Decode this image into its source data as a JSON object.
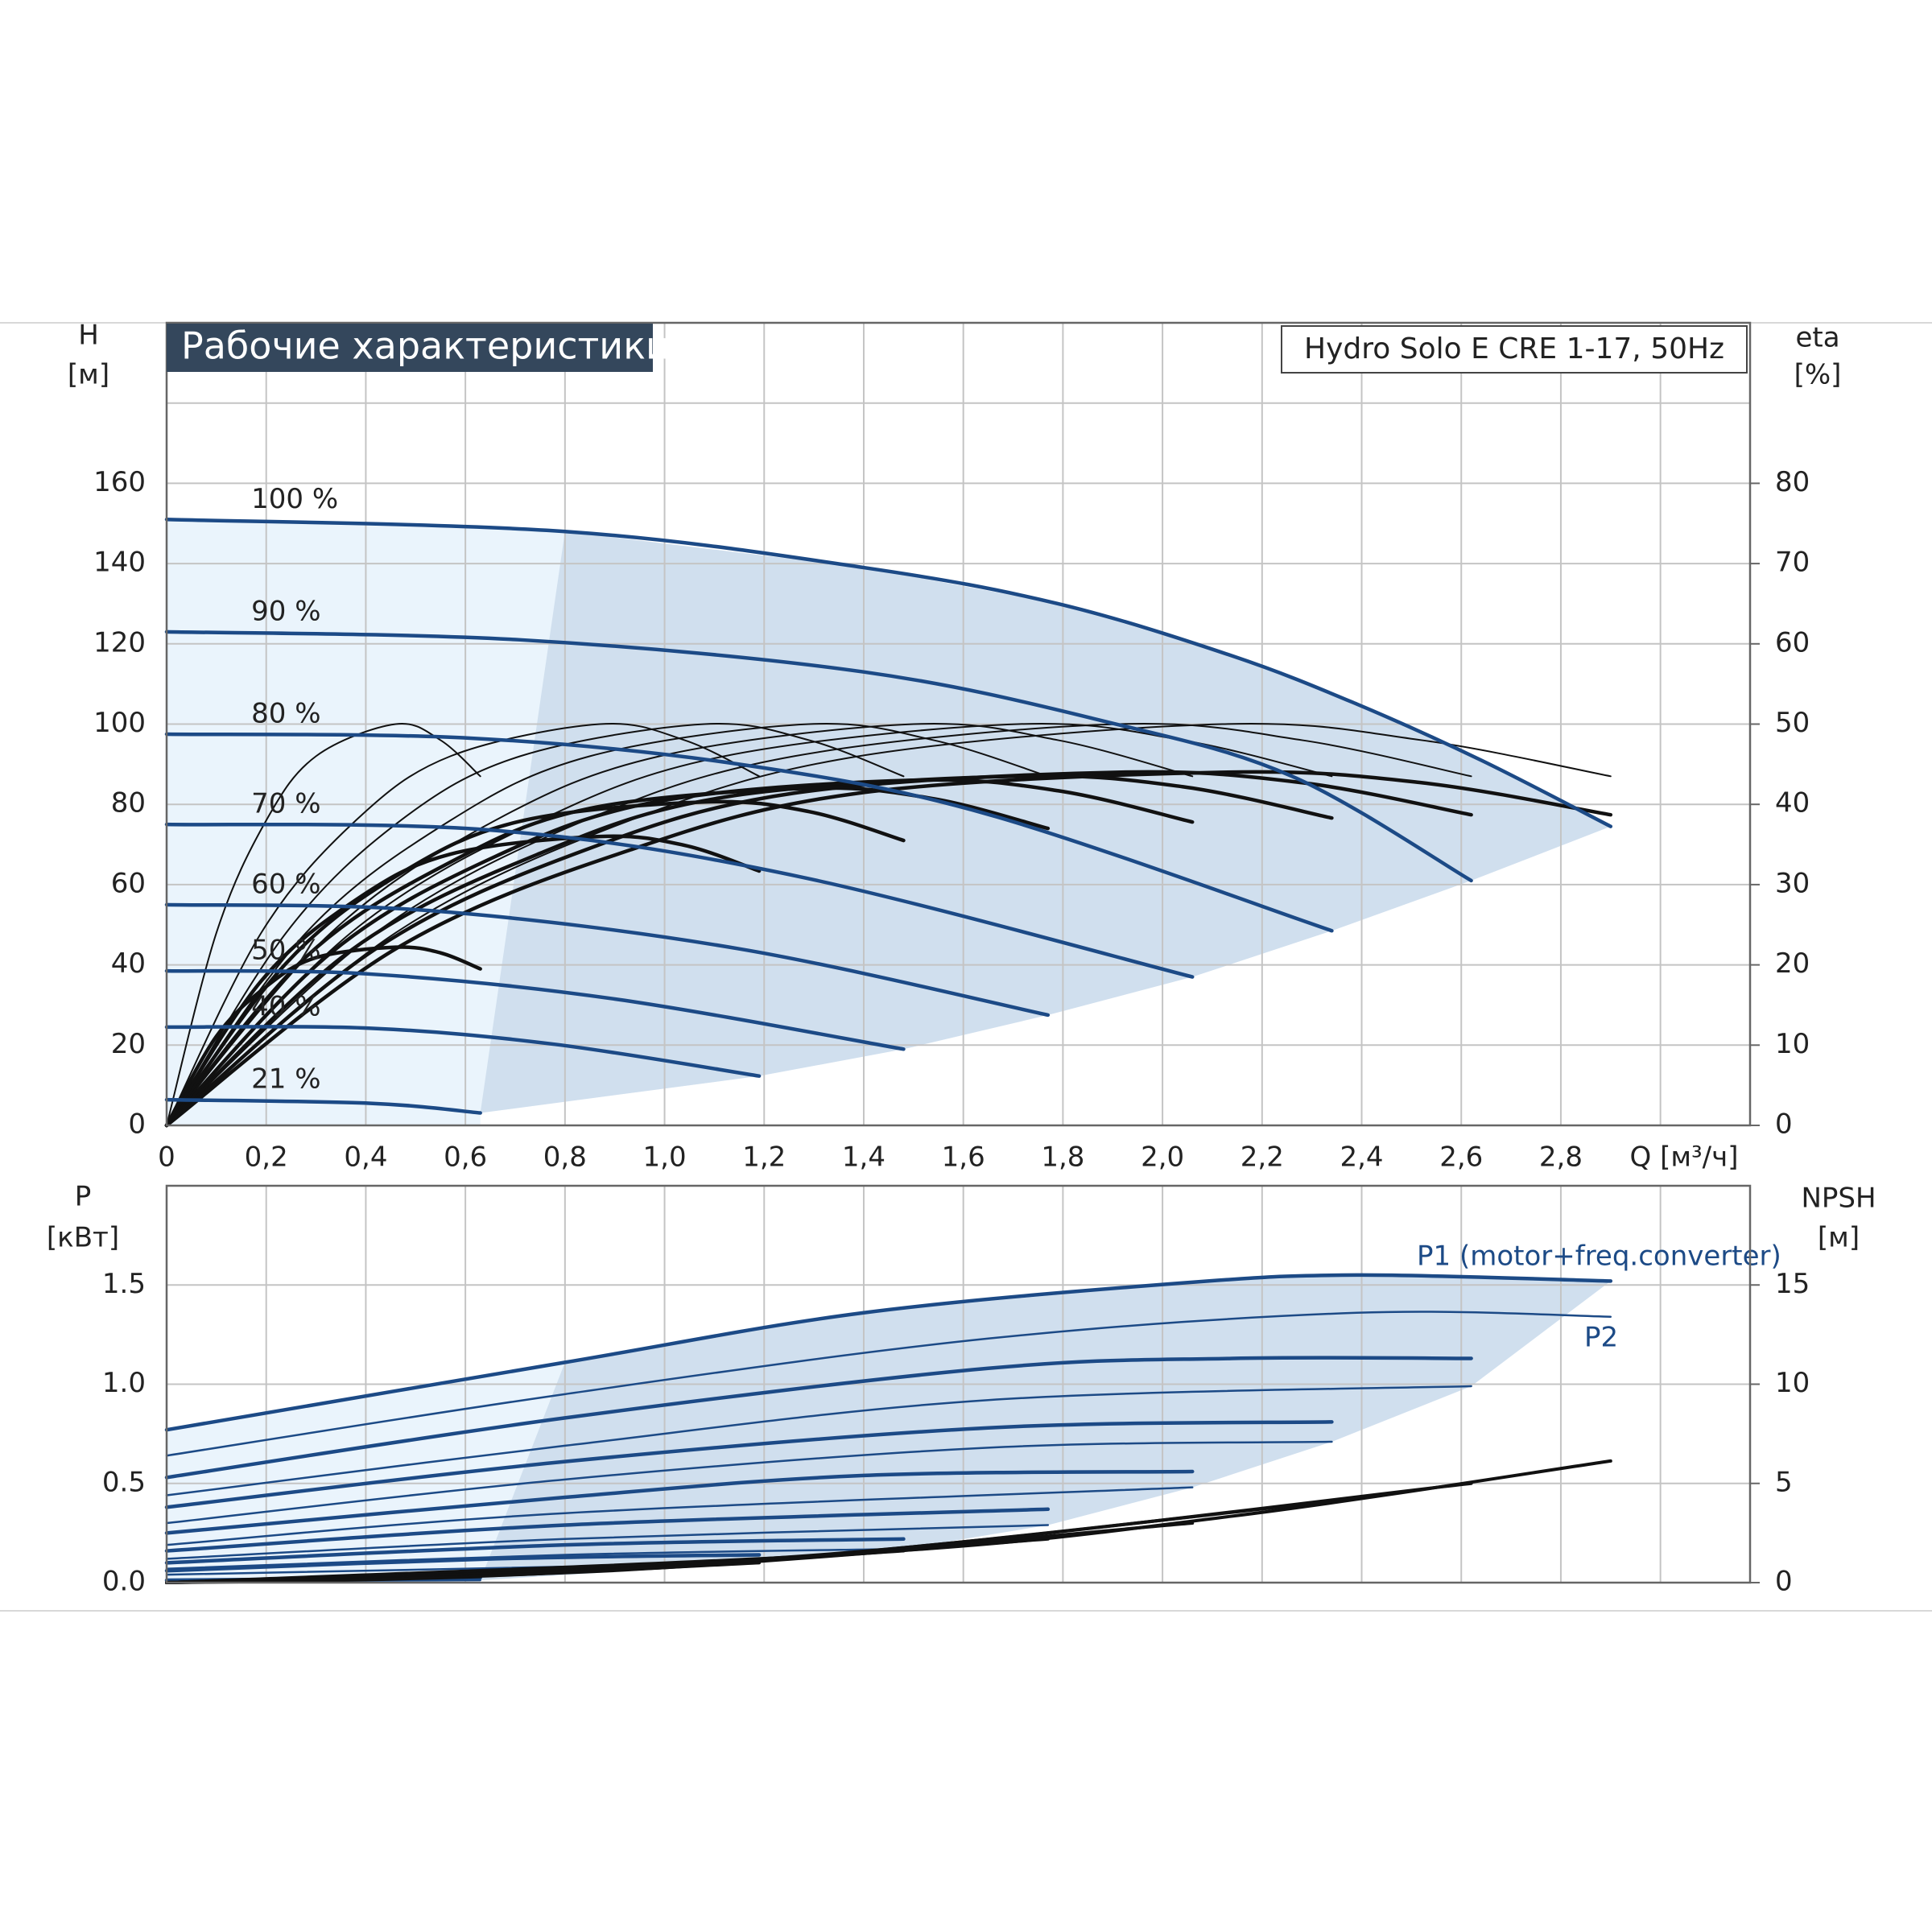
{
  "chart_data": [
    {
      "type": "line",
      "title": "Рабочие характеристики",
      "subtitle": "Hydro Solo E CRE 1-17, 50Hz",
      "ylabel": "H",
      "yunit": "[м]",
      "y2label": "eta",
      "y2unit": "[%]",
      "xlabel": "Q [м³/ч]",
      "xlim": [
        0,
        3.18
      ],
      "ylim": [
        0,
        200
      ],
      "y2lim": [
        0,
        100
      ],
      "xticks": [
        0,
        {
          "value": 0.2,
          "label": "0,2"
        },
        {
          "value": 0.4,
          "label": "0,4"
        },
        {
          "value": 0.6,
          "label": "0,6"
        },
        {
          "value": 0.8,
          "label": "0,8"
        },
        {
          "value": 1,
          "label": "1,0"
        },
        {
          "value": 1.2,
          "label": "1,2"
        },
        {
          "value": 1.4,
          "label": "1,4"
        },
        {
          "value": 1.6,
          "label": "1,6"
        },
        {
          "value": 1.8,
          "label": "1,8"
        },
        {
          "value": 2,
          "label": "2,0"
        },
        {
          "value": 2.2,
          "label": "2,2"
        },
        {
          "value": 2.4,
          "label": "2,4"
        },
        {
          "value": 2.6,
          "label": "2,6"
        },
        {
          "value": 2.8,
          "label": "2,8"
        },
        {
          "value": 3,
          "label": null
        }
      ],
      "yticks": [
        0,
        20,
        40,
        60,
        80,
        100,
        120,
        140,
        160,
        {
          "value": 180,
          "label": null
        }
      ],
      "y2ticks": [
        0,
        10,
        20,
        30,
        40,
        50,
        60,
        70,
        80
      ],
      "grid": true,
      "series": [
        {
          "name": "100 %",
          "color": "#1c4a86",
          "x": [
            0,
            0.8,
            1.4,
            1.79,
            2.14,
            2.39,
            2.64,
            2.9
          ],
          "values": [
            151,
            148,
            139,
            130,
            117,
            105,
            91,
            74.5
          ]
        },
        {
          "name": "90 %",
          "color": "#1c4a86",
          "x": [
            0,
            0.71,
            1.4,
            1.89,
            2.26,
            2.62
          ],
          "values": [
            123,
            121,
            113,
            100.5,
            87,
            61
          ]
        },
        {
          "name": "80 %",
          "color": "#1c4a86",
          "x": [
            0,
            0.61,
            1.15,
            1.65,
            2.34
          ],
          "values": [
            97.5,
            96.5,
            90,
            77.5,
            48.5
          ]
        },
        {
          "name": "70 %",
          "color": "#1c4a86",
          "x": [
            0,
            0.66,
            1.27,
            2.06
          ],
          "values": [
            75,
            73.5,
            62,
            37
          ]
        },
        {
          "name": "60 %",
          "color": "#1c4a86",
          "x": [
            0,
            0.53,
            1.15,
            1.77
          ],
          "values": [
            55,
            53.5,
            44,
            27.5
          ]
        },
        {
          "name": "50 %",
          "color": "#1c4a86",
          "x": [
            0,
            0.41,
            0.9,
            1.48
          ],
          "values": [
            38.5,
            37.7,
            31.5,
            19
          ]
        },
        {
          "name": "40 %",
          "color": "#1c4a86",
          "x": [
            0,
            0.41,
            0.78,
            1.19
          ],
          "values": [
            24.5,
            24.2,
            20.2,
            12.3
          ]
        },
        {
          "name": "21 %",
          "color": "#1c4a86",
          "x": [
            0,
            0.41,
            0.63
          ],
          "values": [
            6.4,
            5.5,
            3.1
          ]
        }
      ],
      "eta_series": [
        {
          "axis": "y2",
          "color": "#111111",
          "x": [
            0,
            0.46,
            0.93,
            1.39,
            2.12,
            2.52,
            2.9
          ],
          "values": [
            0,
            24,
            38,
            46,
            50,
            48,
            43.5
          ]
        },
        {
          "axis": "y2",
          "color": "#111111",
          "x": [
            0,
            0.42,
            0.84,
            1.26,
            1.91,
            2.28,
            2.62
          ],
          "values": [
            0,
            24,
            38,
            46,
            50,
            48,
            43.5
          ]
        },
        {
          "axis": "y2",
          "color": "#111111",
          "x": [
            0,
            0.37,
            0.75,
            1.12,
            1.71,
            2.04,
            2.34
          ],
          "values": [
            0,
            24,
            38,
            46,
            50,
            48,
            43.5
          ]
        },
        {
          "axis": "y2",
          "color": "#111111",
          "x": [
            0,
            0.33,
            0.66,
            0.99,
            1.5,
            1.79,
            2.06
          ],
          "values": [
            0,
            24,
            38,
            46,
            50,
            48,
            43.5
          ]
        },
        {
          "axis": "y2",
          "color": "#111111",
          "x": [
            0,
            0.28,
            0.57,
            0.85,
            1.29,
            1.54,
            1.77
          ],
          "values": [
            0,
            24,
            38,
            46,
            50,
            48,
            43.5
          ]
        },
        {
          "axis": "y2",
          "color": "#111111",
          "x": [
            0,
            0.24,
            0.47,
            0.71,
            1.08,
            1.29,
            1.48
          ],
          "values": [
            0,
            24,
            38,
            46,
            50,
            48,
            43.5
          ]
        },
        {
          "axis": "y2",
          "color": "#111111",
          "x": [
            0,
            0.19,
            0.38,
            0.57,
            0.87,
            1.04,
            1.19
          ],
          "values": [
            0,
            24,
            38,
            46,
            50,
            48,
            43.5
          ]
        },
        {
          "axis": "y2",
          "color": "#111111",
          "x": [
            0,
            0.1,
            0.2,
            0.3,
            0.46,
            0.55,
            0.63
          ],
          "values": [
            0,
            24,
            38,
            46,
            50,
            48,
            43.5
          ]
        }
      ],
      "eta_total_series": [
        {
          "axis": "y2",
          "color": "#111111",
          "x": [
            0,
            0.46,
            0.93,
            1.39,
            2.12,
            2.52,
            2.9
          ],
          "values": [
            0,
            22,
            34.3,
            41.4,
            44,
            42.7,
            38.7
          ]
        },
        {
          "axis": "y2",
          "color": "#111111",
          "x": [
            0,
            0.42,
            0.84,
            1.26,
            1.91,
            2.28,
            2.62
          ],
          "values": [
            0,
            22,
            34.3,
            41.4,
            44,
            42.7,
            38.7
          ]
        },
        {
          "axis": "y2",
          "color": "#111111",
          "x": [
            0,
            0.37,
            0.75,
            1.12,
            1.71,
            2.04,
            2.34
          ],
          "values": [
            0,
            21.8,
            33.9,
            40.9,
            43.5,
            42.2,
            38.3
          ]
        },
        {
          "axis": "y2",
          "color": "#111111",
          "x": [
            0,
            0.33,
            0.66,
            0.99,
            1.5,
            1.79,
            2.06
          ],
          "values": [
            0,
            21.5,
            33.5,
            40.4,
            43,
            41.7,
            37.8
          ]
        },
        {
          "axis": "y2",
          "color": "#111111",
          "x": [
            0,
            0.28,
            0.57,
            0.85,
            1.29,
            1.54,
            1.77
          ],
          "values": [
            0,
            21,
            32.8,
            39.5,
            42,
            40.7,
            37
          ]
        },
        {
          "axis": "y2",
          "color": "#111111",
          "x": [
            0,
            0.24,
            0.47,
            0.71,
            1.08,
            1.29,
            1.48
          ],
          "values": [
            0,
            20.2,
            31.4,
            37.9,
            40.3,
            39.1,
            35.5
          ]
        },
        {
          "axis": "y2",
          "color": "#111111",
          "x": [
            0,
            0.19,
            0.38,
            0.57,
            0.87,
            1.04,
            1.19
          ],
          "values": [
            0,
            18,
            28.1,
            33.8,
            36,
            34.9,
            31.7
          ]
        },
        {
          "axis": "y2",
          "color": "#111111",
          "x": [
            0,
            0.1,
            0.2,
            0.3,
            0.46,
            0.55,
            0.63
          ],
          "values": [
            0,
            11.1,
            17.3,
            20.9,
            22.2,
            21.5,
            19.5
          ]
        }
      ],
      "region_colors": [
        "#eaf4fc",
        "#d0dfee"
      ]
    },
    {
      "type": "line",
      "ylabel": "P",
      "yunit": "[кВт]",
      "y2label": "NPSH",
      "y2unit": "[м]",
      "annotations": [
        "P1 (motor+freq.converter)",
        "P2"
      ],
      "annotation_color": "#1c4a86",
      "xlim": [
        0,
        3.18
      ],
      "ylim": [
        0,
        2
      ],
      "y2lim": [
        0,
        20
      ],
      "xticks": [
        0.2,
        0.4,
        0.6,
        0.8,
        1,
        1.2,
        1.4,
        1.6,
        1.8,
        2,
        2.2,
        2.4,
        2.6,
        2.8,
        3
      ],
      "xtick_labels": false,
      "yticks": [
        {
          "value": 0,
          "label": "0.0"
        },
        0.5,
        {
          "value": 1,
          "label": "1.0"
        },
        1.5
      ],
      "y2ticks": [
        0,
        5,
        10,
        15
      ],
      "grid": true,
      "p1_series": [
        {
          "color": "#1c4a86",
          "x": [
            0,
            0.8,
            1.4,
            2.04,
            2.39,
            2.9
          ],
          "values": [
            0.77,
            1.11,
            1.36,
            1.51,
            1.55,
            1.52
          ]
        },
        {
          "color": "#1c4a86",
          "x": [
            0,
            0.8,
            1.65,
            2.14,
            2.62
          ],
          "values": [
            0.53,
            0.83,
            1.08,
            1.13,
            1.13
          ]
        },
        {
          "color": "#1c4a86",
          "x": [
            0,
            0.8,
            1.65,
            2.34
          ],
          "values": [
            0.38,
            0.61,
            0.78,
            0.81
          ]
        },
        {
          "color": "#1c4a86",
          "x": [
            0,
            0.8,
            1.4,
            2.06
          ],
          "values": [
            0.25,
            0.43,
            0.54,
            0.56
          ]
        },
        {
          "color": "#1c4a86",
          "x": [
            0,
            0.8,
            1.77
          ],
          "values": [
            0.16,
            0.29,
            0.37
          ]
        },
        {
          "color": "#1c4a86",
          "x": [
            0,
            0.8,
            1.48
          ],
          "values": [
            0.1,
            0.19,
            0.22
          ]
        },
        {
          "color": "#1c4a86",
          "x": [
            0,
            0.66,
            1.19
          ],
          "values": [
            0.06,
            0.12,
            0.14
          ]
        },
        {
          "color": "#1c4a86",
          "x": [
            0,
            0.63
          ],
          "values": [
            0.012,
            0.025
          ]
        }
      ],
      "p2_series": [
        {
          "color": "#1c4a86",
          "x": [
            0,
            0.8,
            1.65,
            2.39,
            2.9
          ],
          "values": [
            0.64,
            0.95,
            1.23,
            1.36,
            1.34
          ]
        },
        {
          "color": "#1c4a86",
          "x": [
            0,
            0.8,
            1.65,
            2.62
          ],
          "values": [
            0.44,
            0.69,
            0.92,
            0.99
          ]
        },
        {
          "color": "#1c4a86",
          "x": [
            0,
            0.8,
            1.65,
            2.34
          ],
          "values": [
            0.3,
            0.52,
            0.68,
            0.71
          ]
        },
        {
          "color": "#1c4a86",
          "x": [
            0,
            0.8,
            2.06
          ],
          "values": [
            0.19,
            0.35,
            0.48
          ]
        },
        {
          "color": "#1c4a86",
          "x": [
            0,
            0.8,
            1.77
          ],
          "values": [
            0.12,
            0.22,
            0.29
          ]
        },
        {
          "color": "#1c4a86",
          "x": [
            0,
            0.8,
            1.48
          ],
          "values": [
            0.07,
            0.14,
            0.17
          ]
        },
        {
          "color": "#1c4a86",
          "x": [
            0,
            1.19
          ],
          "values": [
            0.04,
            0.1
          ]
        },
        {
          "color": "#1c4a86",
          "x": [
            0,
            0.63
          ],
          "values": [
            0.006,
            0.012
          ]
        }
      ],
      "npsh_series": [
        {
          "axis": "y2",
          "color": "#111111",
          "x": [
            0,
            1.4,
            2.14,
            2.9
          ],
          "values": [
            0,
            1.49,
            3.35,
            6.13
          ]
        },
        {
          "axis": "y2",
          "color": "#111111",
          "x": [
            0,
            1.31,
            2.62
          ],
          "values": [
            0,
            1.4,
            5
          ]
        },
        {
          "axis": "y2",
          "color": "#111111",
          "x": [
            0,
            1.17,
            2.34
          ],
          "values": [
            0,
            1.1,
            4.1
          ]
        },
        {
          "axis": "y2",
          "color": "#111111",
          "x": [
            0,
            1.03,
            2.06
          ],
          "values": [
            0,
            0.85,
            3
          ]
        },
        {
          "axis": "y2",
          "color": "#111111",
          "x": [
            0,
            0.89,
            1.77
          ],
          "values": [
            0,
            0.6,
            2.2
          ]
        },
        {
          "axis": "y2",
          "color": "#111111",
          "x": [
            0,
            0.74,
            1.48
          ],
          "values": [
            0,
            0.45,
            1.6
          ]
        },
        {
          "axis": "y2",
          "color": "#111111",
          "x": [
            0,
            0.6,
            1.19
          ],
          "values": [
            0,
            0.3,
            1
          ]
        },
        {
          "axis": "y2",
          "color": "#111111",
          "x": [
            0,
            0.32,
            0.63
          ],
          "values": [
            0,
            0.1,
            0.3
          ]
        }
      ],
      "region_colors": [
        "#eaf4fc",
        "#d0dfee"
      ]
    }
  ]
}
